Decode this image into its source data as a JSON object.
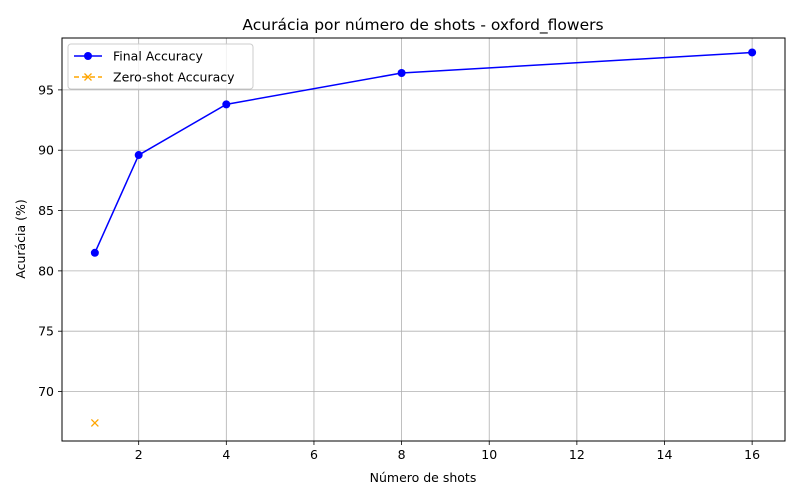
{
  "chart_data": {
    "type": "line",
    "title": "Acurácia por número de shots - oxford_flowers",
    "xlabel": "Número de shots",
    "ylabel": "Acurácia (%)",
    "xlim": [
      0.25,
      16.75
    ],
    "ylim": [
      65.9,
      99.3
    ],
    "xticks": [
      2,
      4,
      6,
      8,
      10,
      12,
      14,
      16
    ],
    "yticks": [
      70,
      75,
      80,
      85,
      90,
      95
    ],
    "grid": true,
    "legend_position": "top-left",
    "series": [
      {
        "name": "Final Accuracy",
        "color": "#0000ff",
        "line_style": "solid",
        "marker": "circle",
        "x": [
          1,
          2,
          4,
          8,
          16
        ],
        "y": [
          81.5,
          89.6,
          93.8,
          96.4,
          98.1
        ]
      },
      {
        "name": "Zero-shot Accuracy",
        "color": "#ffa500",
        "line_style": "dashed",
        "marker": "x",
        "x": [
          1
        ],
        "y": [
          67.4
        ]
      }
    ]
  }
}
